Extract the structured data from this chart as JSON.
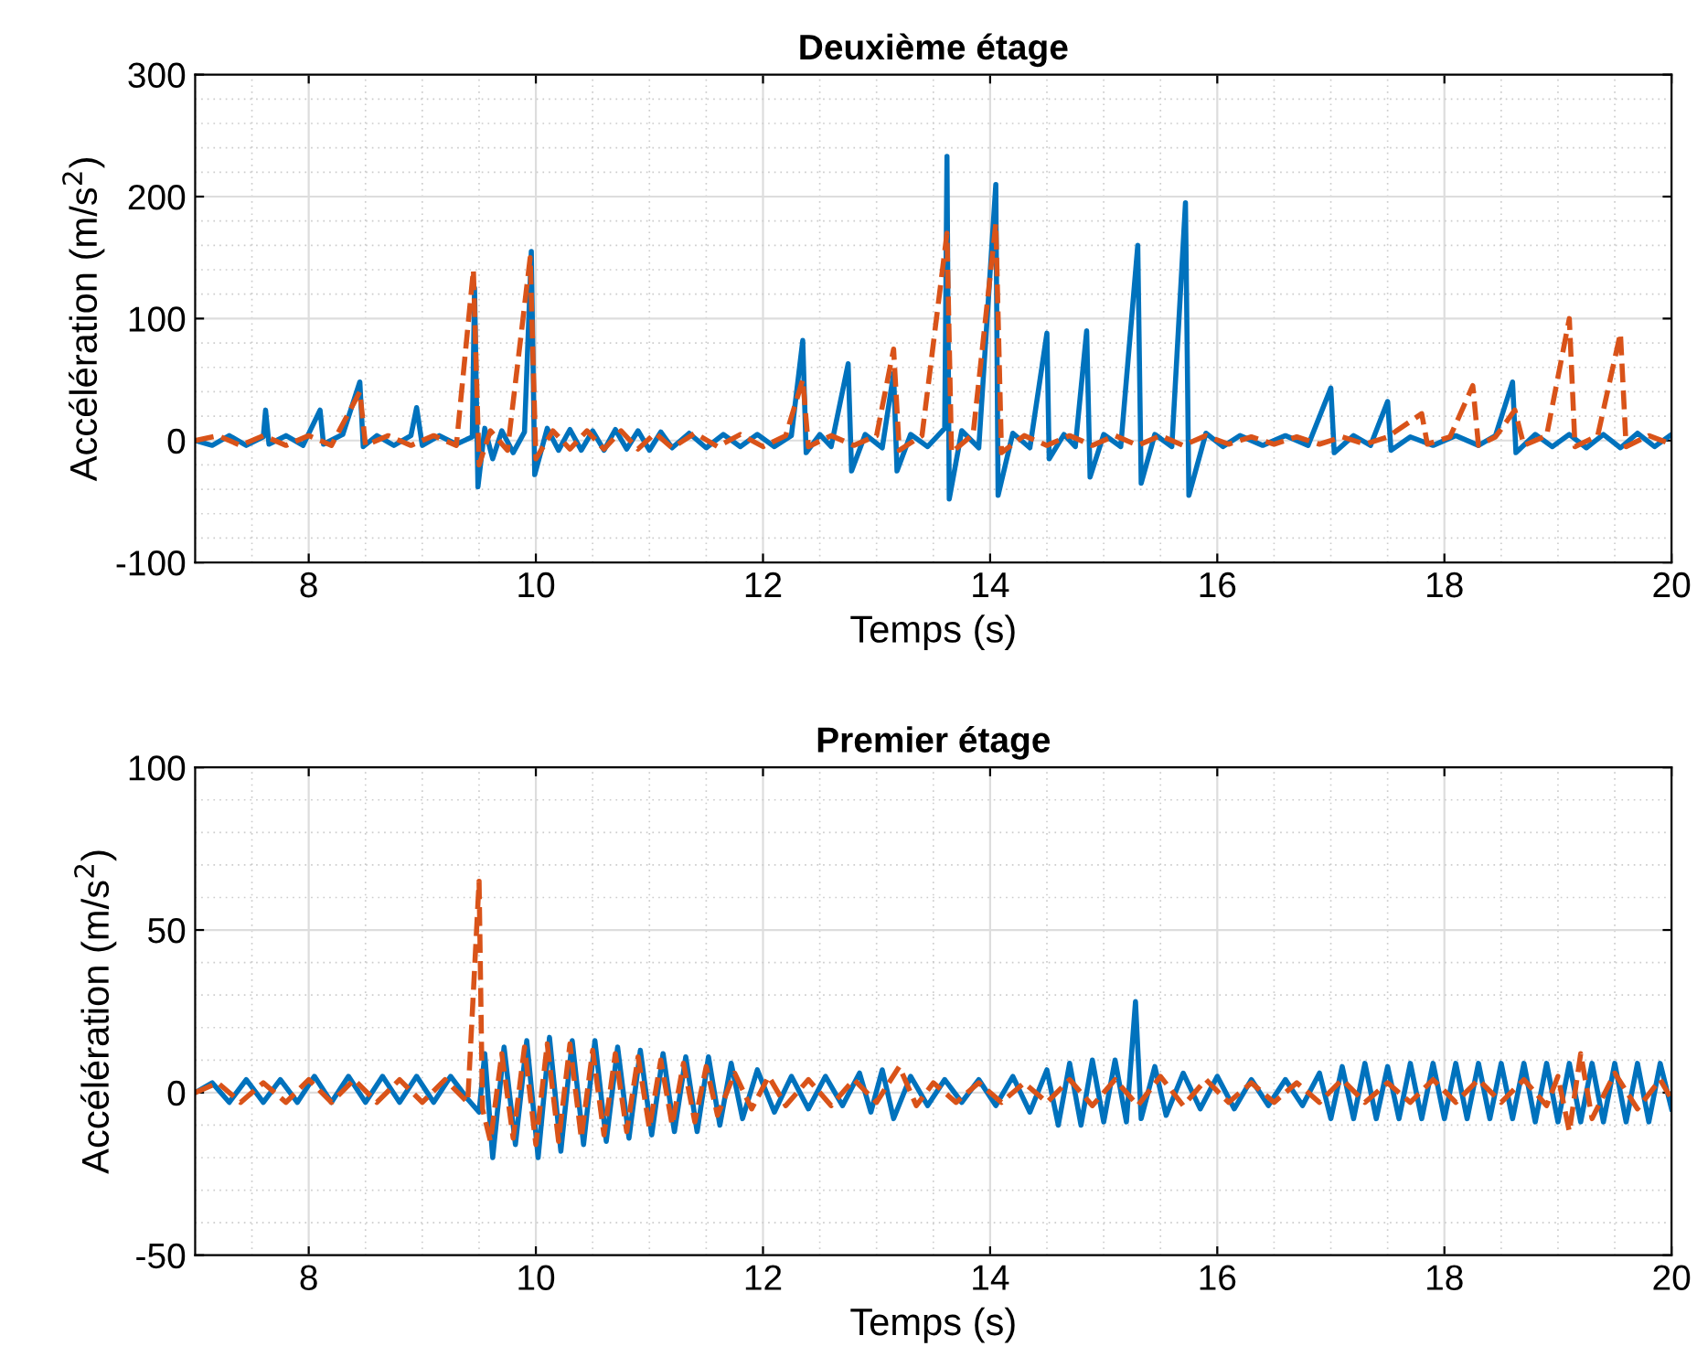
{
  "chart_data": [
    {
      "type": "line",
      "title": "Deuxième étage",
      "xlabel": "Temps (s)",
      "ylabel": "Accélération (m/s$^{2}$)",
      "xlim": [
        7,
        20
      ],
      "xticks": [
        8,
        10,
        12,
        14,
        16,
        18,
        20
      ],
      "ylim": [
        -100,
        300
      ],
      "yticks": [
        -100,
        0,
        100,
        200,
        300
      ],
      "grid": true,
      "legend": false,
      "series": [
        {
          "color": "#0072bd",
          "line_style": "solid",
          "x": [
            7.0,
            7.15,
            7.3,
            7.45,
            7.6,
            7.62,
            7.65,
            7.8,
            7.95,
            8.1,
            8.13,
            8.3,
            8.45,
            8.48,
            8.6,
            8.75,
            8.9,
            8.95,
            9.0,
            9.15,
            9.3,
            9.44,
            9.46,
            9.49,
            9.55,
            9.62,
            9.7,
            9.8,
            9.9,
            9.96,
            9.99,
            10.1,
            10.2,
            10.3,
            10.4,
            10.5,
            10.6,
            10.7,
            10.8,
            10.9,
            11.0,
            11.1,
            11.2,
            11.35,
            11.5,
            11.65,
            11.8,
            11.95,
            12.1,
            12.25,
            12.35,
            12.38,
            12.5,
            12.6,
            12.75,
            12.78,
            12.9,
            13.05,
            13.15,
            13.18,
            13.3,
            13.45,
            13.6,
            13.62,
            13.64,
            13.75,
            13.9,
            14.05,
            14.07,
            14.2,
            14.35,
            14.5,
            14.52,
            14.65,
            14.75,
            14.85,
            14.88,
            15.0,
            15.15,
            15.3,
            15.33,
            15.45,
            15.6,
            15.72,
            15.75,
            15.9,
            16.05,
            16.2,
            16.4,
            16.6,
            16.8,
            17.0,
            17.03,
            17.2,
            17.35,
            17.5,
            17.53,
            17.7,
            17.9,
            18.1,
            18.3,
            18.45,
            18.6,
            18.63,
            18.8,
            18.95,
            19.1,
            19.25,
            19.4,
            19.55,
            19.7,
            19.85,
            20.0
          ],
          "values": [
            0,
            -4,
            4,
            -4,
            3,
            25,
            -3,
            4,
            -4,
            25,
            -3,
            5,
            48,
            -5,
            4,
            -4,
            4,
            27,
            -4,
            4,
            -3,
            3,
            125,
            -38,
            10,
            -15,
            8,
            -10,
            7,
            155,
            -28,
            10,
            -8,
            9,
            -8,
            8,
            -8,
            9,
            -7,
            8,
            -8,
            7,
            -6,
            6,
            -6,
            5,
            -5,
            5,
            -5,
            4,
            82,
            -10,
            5,
            -5,
            63,
            -25,
            5,
            -6,
            55,
            -25,
            5,
            -5,
            10,
            233,
            -48,
            8,
            -6,
            210,
            -45,
            6,
            -6,
            88,
            -15,
            5,
            -5,
            90,
            -30,
            5,
            -5,
            160,
            -35,
            5,
            -5,
            195,
            -45,
            6,
            -5,
            4,
            -4,
            4,
            -4,
            43,
            -10,
            4,
            -4,
            32,
            -8,
            3,
            -4,
            4,
            -4,
            4,
            48,
            -10,
            5,
            -5,
            5,
            -6,
            5,
            -6,
            6,
            -5,
            5
          ]
        },
        {
          "color": "#d95319",
          "line_style": "dashed",
          "x": [
            7.0,
            7.2,
            7.4,
            7.6,
            7.8,
            8.0,
            8.2,
            8.45,
            8.5,
            8.7,
            8.9,
            9.1,
            9.3,
            9.45,
            9.5,
            9.6,
            9.75,
            9.95,
            10.0,
            10.15,
            10.3,
            10.45,
            10.6,
            10.75,
            10.9,
            11.05,
            11.2,
            11.4,
            11.6,
            11.8,
            12.0,
            12.2,
            12.35,
            12.4,
            12.6,
            12.8,
            13.0,
            13.15,
            13.2,
            13.4,
            13.62,
            13.66,
            13.85,
            14.05,
            14.1,
            14.3,
            14.5,
            14.7,
            14.9,
            15.1,
            15.3,
            15.5,
            15.7,
            15.9,
            16.1,
            16.3,
            16.5,
            16.7,
            16.9,
            17.1,
            17.3,
            17.5,
            17.8,
            17.85,
            18.05,
            18.25,
            18.3,
            18.45,
            18.62,
            18.7,
            18.9,
            19.1,
            19.15,
            19.35,
            19.55,
            19.6,
            19.8,
            20.0
          ],
          "values": [
            0,
            4,
            -4,
            4,
            -4,
            4,
            -4,
            40,
            -4,
            4,
            -4,
            4,
            -4,
            140,
            -20,
            8,
            -8,
            150,
            -15,
            8,
            -7,
            8,
            -7,
            8,
            -7,
            6,
            -6,
            6,
            -5,
            5,
            -5,
            4,
            50,
            -5,
            4,
            -4,
            4,
            75,
            -8,
            4,
            170,
            -10,
            5,
            178,
            -10,
            4,
            -4,
            4,
            -4,
            4,
            -4,
            4,
            -4,
            4,
            -3,
            3,
            -3,
            3,
            -3,
            3,
            -3,
            3,
            22,
            -3,
            3,
            45,
            -4,
            3,
            25,
            -4,
            4,
            100,
            -5,
            4,
            88,
            -5,
            4,
            -3
          ]
        }
      ]
    },
    {
      "type": "line",
      "title": "Premier étage",
      "xlabel": "Temps (s)",
      "ylabel": "Accélération (m/s$^{2}$)",
      "xlim": [
        7,
        20
      ],
      "xticks": [
        8,
        10,
        12,
        14,
        16,
        18,
        20
      ],
      "ylim": [
        -50,
        100
      ],
      "yticks": [
        -50,
        0,
        50,
        100
      ],
      "grid": true,
      "legend": false,
      "series": [
        {
          "color": "#0072bd",
          "line_style": "solid",
          "x": [
            7.0,
            7.15,
            7.3,
            7.45,
            7.6,
            7.75,
            7.9,
            8.05,
            8.2,
            8.35,
            8.5,
            8.65,
            8.8,
            8.95,
            9.1,
            9.25,
            9.4,
            9.5,
            9.55,
            9.62,
            9.72,
            9.82,
            9.92,
            10.02,
            10.12,
            10.22,
            10.32,
            10.42,
            10.52,
            10.62,
            10.72,
            10.82,
            10.92,
            11.02,
            11.12,
            11.22,
            11.32,
            11.42,
            11.52,
            11.62,
            11.72,
            11.82,
            11.95,
            12.1,
            12.25,
            12.4,
            12.55,
            12.7,
            12.85,
            12.95,
            13.05,
            13.15,
            13.3,
            13.45,
            13.6,
            13.75,
            13.9,
            14.05,
            14.2,
            14.35,
            14.5,
            14.6,
            14.7,
            14.8,
            14.9,
            15.0,
            15.1,
            15.2,
            15.28,
            15.33,
            15.45,
            15.55,
            15.7,
            15.85,
            16.0,
            16.15,
            16.3,
            16.45,
            16.6,
            16.75,
            16.9,
            17.0,
            17.1,
            17.2,
            17.3,
            17.4,
            17.5,
            17.6,
            17.7,
            17.8,
            17.9,
            18.0,
            18.1,
            18.2,
            18.3,
            18.4,
            18.5,
            18.6,
            18.7,
            18.8,
            18.9,
            19.0,
            19.1,
            19.2,
            19.3,
            19.4,
            19.5,
            19.6,
            19.7,
            19.8,
            19.9,
            20.0
          ],
          "values": [
            0,
            3,
            -3,
            4,
            -3,
            4,
            -3,
            5,
            -3,
            5,
            -3,
            5,
            -3,
            5,
            -3,
            5,
            -2,
            -6,
            12,
            -20,
            14,
            -16,
            16,
            -20,
            17,
            -18,
            16,
            -16,
            16,
            -15,
            14,
            -14,
            13,
            -13,
            12,
            -12,
            11,
            -12,
            11,
            -10,
            9,
            -8,
            7,
            -6,
            5,
            -5,
            5,
            -4,
            6,
            -6,
            7,
            -8,
            5,
            -4,
            4,
            -3,
            4,
            -4,
            5,
            -6,
            7,
            -10,
            9,
            -10,
            10,
            -9,
            10,
            -9,
            28,
            -8,
            8,
            -7,
            6,
            -5,
            5,
            -5,
            4,
            -4,
            4,
            -4,
            6,
            -8,
            8,
            -8,
            9,
            -8,
            8,
            -8,
            9,
            -8,
            9,
            -8,
            9,
            -8,
            9,
            -8,
            9,
            -8,
            9,
            -9,
            9,
            -9,
            9,
            -9,
            9,
            -9,
            9,
            -9,
            9,
            -9,
            9,
            -5
          ]
        },
        {
          "color": "#d95319",
          "line_style": "dashed",
          "x": [
            7.0,
            7.2,
            7.4,
            7.6,
            7.8,
            8.0,
            8.2,
            8.4,
            8.6,
            8.8,
            9.0,
            9.2,
            9.4,
            9.5,
            9.53,
            9.6,
            9.7,
            9.8,
            9.9,
            10.0,
            10.1,
            10.2,
            10.3,
            10.4,
            10.5,
            10.6,
            10.7,
            10.8,
            10.9,
            11.0,
            11.1,
            11.2,
            11.3,
            11.4,
            11.5,
            11.6,
            11.75,
            11.9,
            12.05,
            12.2,
            12.4,
            12.6,
            12.8,
            13.0,
            13.2,
            13.35,
            13.5,
            13.7,
            13.9,
            14.1,
            14.3,
            14.5,
            14.7,
            14.9,
            15.1,
            15.3,
            15.5,
            15.7,
            15.9,
            16.1,
            16.3,
            16.5,
            16.7,
            16.9,
            17.1,
            17.3,
            17.5,
            17.7,
            17.9,
            18.1,
            18.3,
            18.5,
            18.7,
            18.9,
            19.0,
            19.1,
            19.2,
            19.3,
            19.5,
            19.7,
            19.9,
            20.0
          ],
          "values": [
            0,
            3,
            -3,
            3,
            -3,
            4,
            -3,
            4,
            -3,
            4,
            -3,
            4,
            -3,
            65,
            -5,
            -15,
            12,
            -14,
            14,
            -16,
            15,
            -15,
            15,
            -14,
            13,
            -13,
            12,
            -12,
            11,
            -11,
            10,
            -10,
            9,
            -9,
            8,
            -7,
            6,
            -5,
            5,
            -4,
            4,
            -4,
            4,
            -3,
            8,
            -4,
            3,
            -3,
            3,
            -3,
            3,
            -3,
            4,
            -4,
            4,
            -4,
            5,
            -4,
            4,
            -3,
            3,
            -3,
            3,
            -3,
            4,
            -3,
            3,
            -3,
            4,
            -3,
            4,
            -3,
            4,
            -4,
            5,
            -12,
            12,
            -8,
            6,
            -5,
            4,
            -2
          ]
        }
      ]
    }
  ]
}
